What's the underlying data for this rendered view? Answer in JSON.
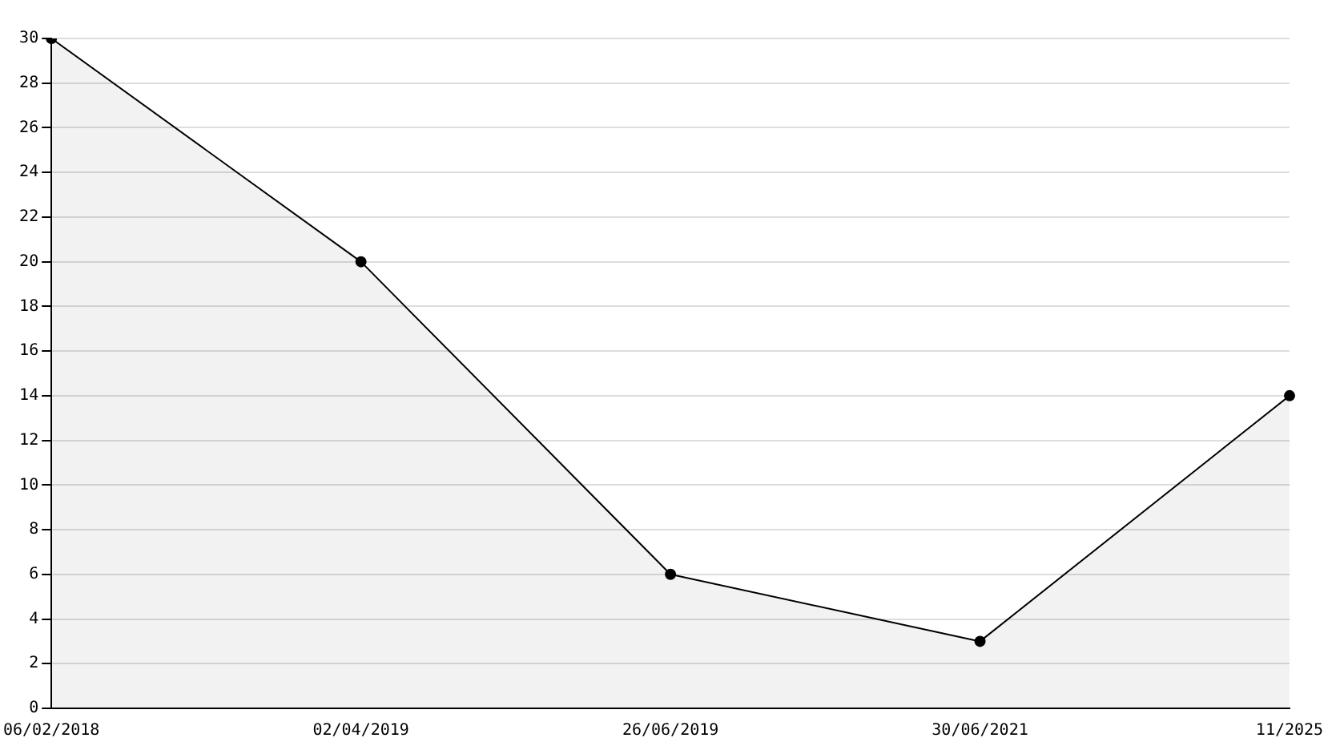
{
  "chart_data": {
    "type": "area",
    "categories": [
      "06/02/2018",
      "02/04/2019",
      "26/06/2019",
      "30/06/2021",
      "11/2025"
    ],
    "series": [
      {
        "color": "#000000",
        "values": [
          30,
          20,
          6,
          3,
          14
        ]
      }
    ],
    "ylim": [
      0,
      30
    ],
    "yticks": [
      0,
      2,
      4,
      6,
      8,
      10,
      12,
      14,
      16,
      18,
      20,
      22,
      24,
      26,
      28,
      30
    ],
    "grid": "y",
    "marker": "circle",
    "line_style": "solid",
    "legend": false
  }
}
